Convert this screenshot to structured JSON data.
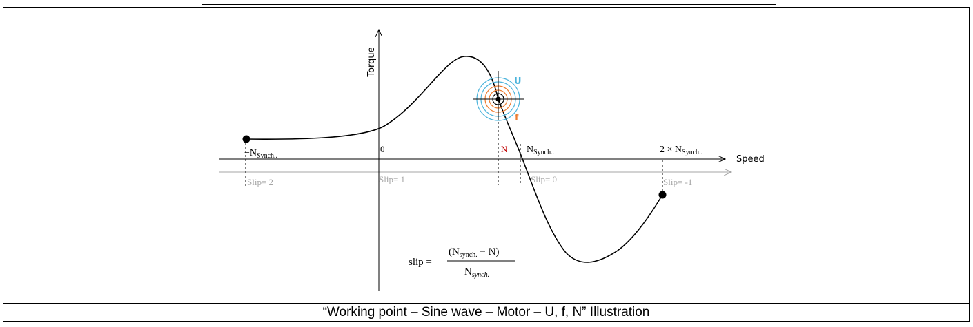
{
  "figure": {
    "axis_labels": {
      "vertical": "Torque",
      "horizontal": "Speed"
    },
    "speed_ticks": {
      "neg_sync": "N",
      "neg_sync_sub": "Synch..",
      "zero": "0",
      "working": "N",
      "sync": "N",
      "sync_sub": "Synch..",
      "double_sync": "2 × N",
      "double_sync_sub": "Synch.."
    },
    "slip_ticks": {
      "s2": "Slip= 2",
      "s1": "Slip= 1",
      "s0": "Slip= 0",
      "sm1": "Slip= -1"
    },
    "target_labels": {
      "voltage": "U",
      "frequency": "f"
    },
    "formula": {
      "lhs": "slip =",
      "num_open": "(N",
      "num_sub": "synch.",
      "num_rest": " − N)",
      "den": "N",
      "den_sub": "synch."
    },
    "colors": {
      "working_point_label": "#c00000",
      "voltage": "#4bb4dc",
      "frequency": "#ed7d31",
      "slip_axis": "#a6a6a6"
    }
  },
  "caption": "“Working point – Sine wave – Motor – U, f, N” Illustration"
}
